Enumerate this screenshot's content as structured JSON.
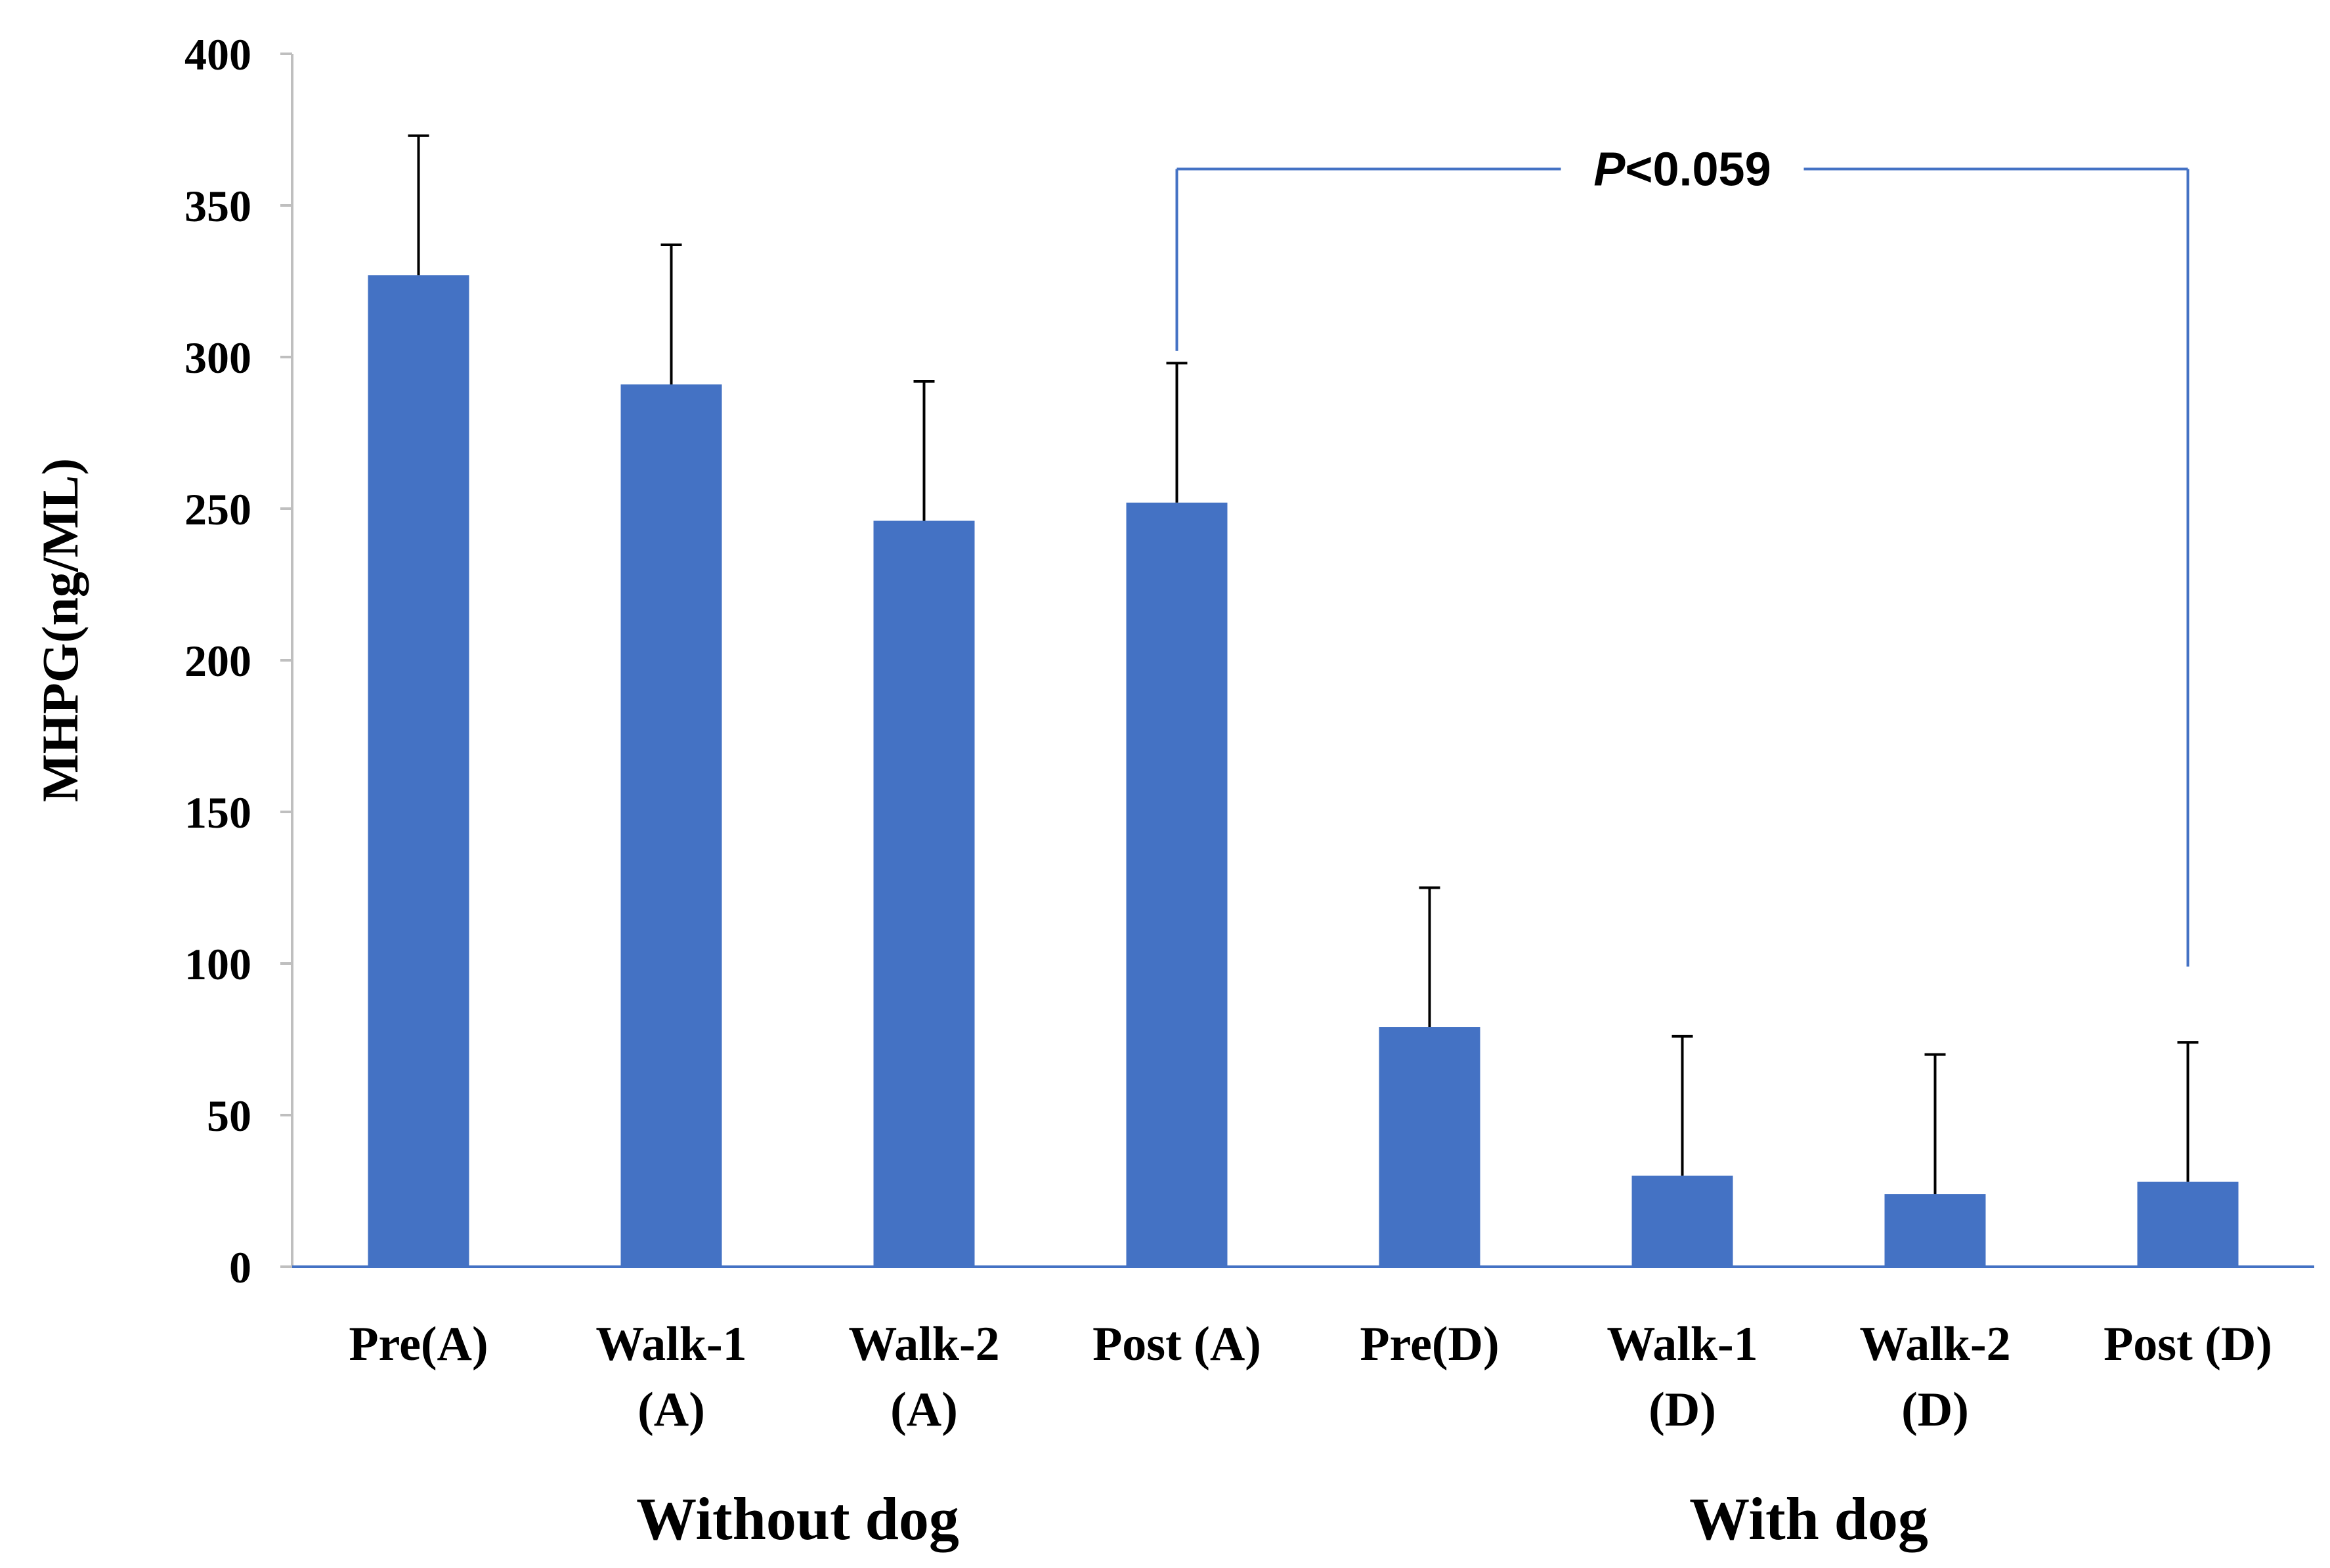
{
  "chart_data": {
    "type": "bar",
    "title": "",
    "xlabel": "",
    "ylabel": "MHPG(ng/ML)",
    "ylim": [
      0,
      400
    ],
    "yticks": [
      0,
      50,
      100,
      150,
      200,
      250,
      300,
      350,
      400
    ],
    "grid": false,
    "categories": [
      [
        "Pre(A)"
      ],
      [
        "Walk-1",
        "(A)"
      ],
      [
        "Walk-2",
        "(A)"
      ],
      [
        "Post (A)"
      ],
      [
        "Pre(D)"
      ],
      [
        "Walk-1",
        "(D)"
      ],
      [
        "Walk-2",
        "(D)"
      ],
      [
        "Post (D)"
      ]
    ],
    "series": [
      {
        "name": "MHPG",
        "values": [
          327,
          291,
          246,
          252,
          79,
          30,
          24,
          28
        ],
        "error_upper": [
          46,
          46,
          46,
          46,
          46,
          46,
          46,
          46
        ]
      }
    ],
    "groups": [
      {
        "label": "Without dog",
        "from": 0,
        "to": 3
      },
      {
        "label": "With dog",
        "from": 4,
        "to": 7
      }
    ],
    "annotation": {
      "italic_part": "P",
      "text_part": "<0.059",
      "from_category": 3,
      "to_category": 7,
      "bracket_level": 362,
      "left_end": 302,
      "right_end": 99
    },
    "colors": {
      "bar": "#4472C4",
      "axis": "#4472C4",
      "bracket": "#4472C4",
      "error_bar": "#000000",
      "text": "#000000"
    }
  }
}
